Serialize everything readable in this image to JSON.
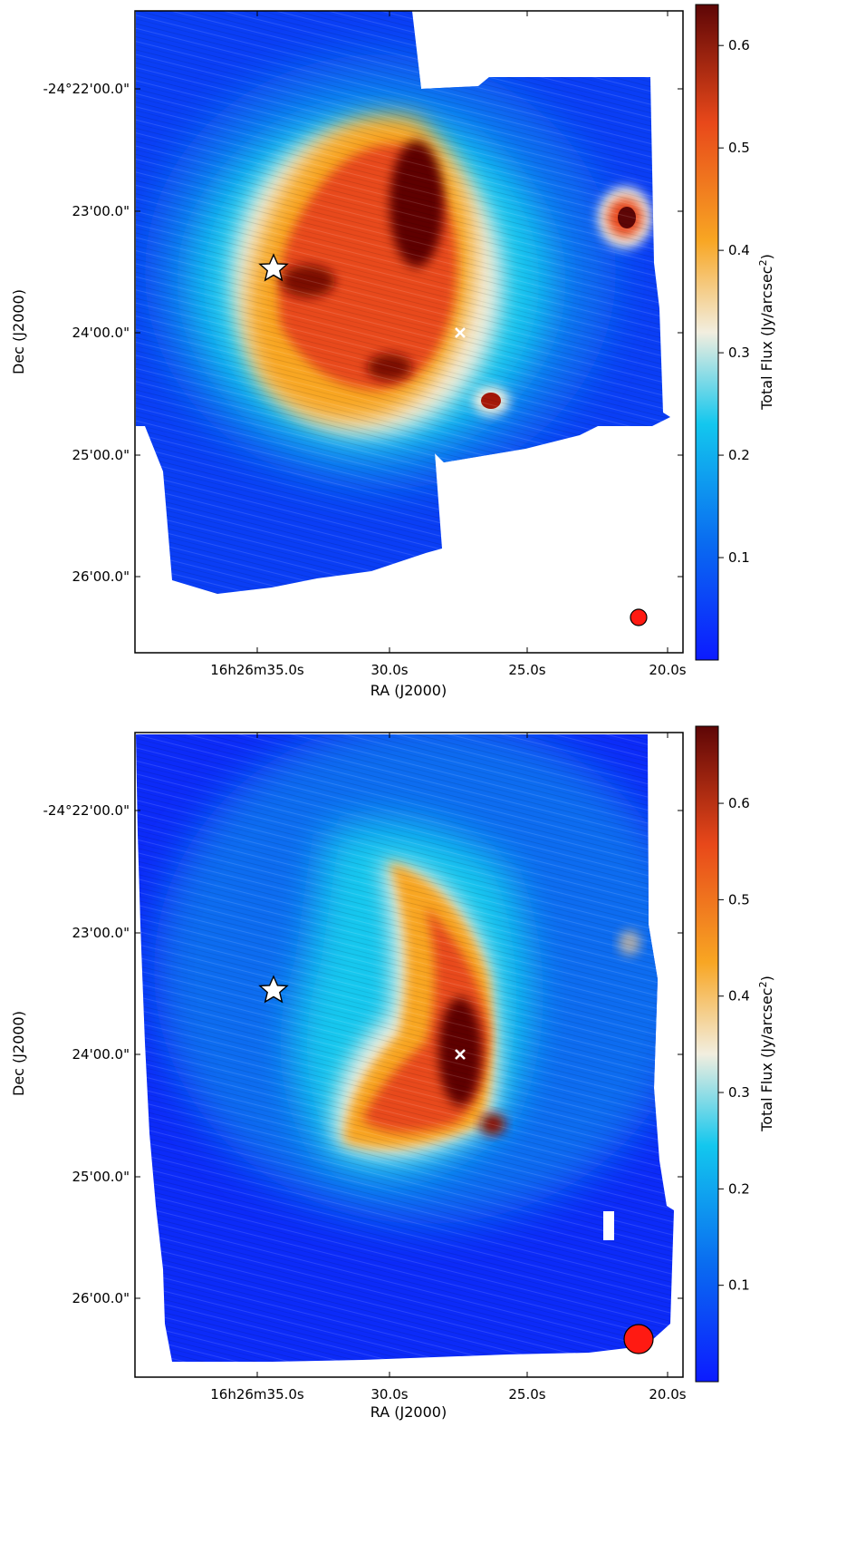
{
  "figure": {
    "panels": [
      {
        "id": "top",
        "xlabel": "RA (J2000)",
        "ylabel": "Dec (J2000)",
        "colorbar_label": "Total Flux (Jy/arcsec",
        "colorbar_label_sup": "2",
        "colorbar_label_end": ")",
        "colorbar_ticks": [
          {
            "label": "0.1",
            "value": 0.1
          },
          {
            "label": "0.2",
            "value": 0.2
          },
          {
            "label": "0.3",
            "value": 0.3
          },
          {
            "label": "0.4",
            "value": 0.4
          },
          {
            "label": "0.5",
            "value": 0.5
          },
          {
            "label": "0.6",
            "value": 0.6
          }
        ],
        "colorbar_range": [
          0.0,
          0.64
        ],
        "ra_ticks": [
          "16h26m35.0s",
          "30.0s",
          "25.0s",
          "20.0s"
        ],
        "dec_ticks": [
          "-24°22'00.0\"",
          "23'00.0\"",
          "24'00.0\"",
          "25'00.0\"",
          "26'00.0\""
        ],
        "markers": [
          "star-marker",
          "cross-marker",
          "beam-marker"
        ]
      },
      {
        "id": "bottom",
        "xlabel": "RA (J2000)",
        "ylabel": "Dec (J2000)",
        "colorbar_label": "Total Flux (Jy/arcsec",
        "colorbar_label_sup": "2",
        "colorbar_label_end": ")",
        "colorbar_ticks": [
          {
            "label": "0.1",
            "value": 0.1
          },
          {
            "label": "0.2",
            "value": 0.2
          },
          {
            "label": "0.3",
            "value": 0.3
          },
          {
            "label": "0.4",
            "value": 0.4
          },
          {
            "label": "0.5",
            "value": 0.5
          },
          {
            "label": "0.6",
            "value": 0.6
          }
        ],
        "colorbar_range": [
          0.0,
          0.68
        ],
        "ra_ticks": [
          "16h26m35.0s",
          "30.0s",
          "25.0s",
          "20.0s"
        ],
        "dec_ticks": [
          "-24°22'00.0\"",
          "23'00.0\"",
          "24'00.0\"",
          "25'00.0\"",
          "26'00.0\""
        ],
        "markers": [
          "star-marker",
          "cross-marker",
          "beam-marker"
        ]
      }
    ],
    "colormap": [
      "#0c1bff",
      "#0a6cf0",
      "#13c7ee",
      "#f2eedf",
      "#f8a623",
      "#e8481a",
      "#5e0606"
    ]
  }
}
